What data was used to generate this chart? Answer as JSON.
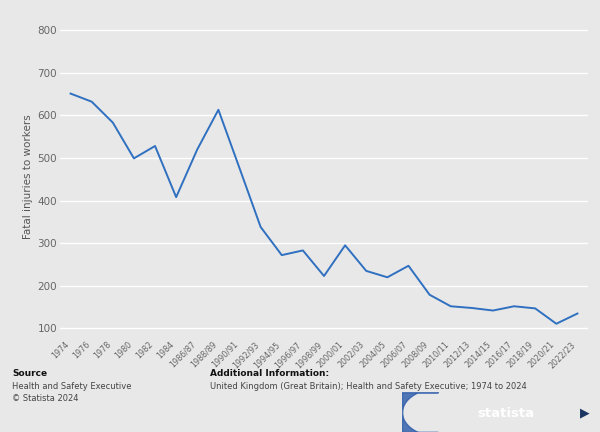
{
  "x_labels": [
    "1974",
    "1976",
    "1978",
    "1980",
    "1982",
    "1984",
    "1986/87",
    "1988/89",
    "1990/91",
    "1992/93",
    "1994/95",
    "1996/97",
    "1998/99",
    "2000/01",
    "2002/03",
    "2004/05",
    "2006/07",
    "2008/09",
    "2010/11",
    "2012/13",
    "2014/15",
    "2016/17",
    "2018/19",
    "2020/21",
    "2022/23"
  ],
  "y_values": [
    651,
    632,
    583,
    499,
    528,
    408,
    520,
    613,
    476,
    338,
    272,
    283,
    223,
    295,
    235,
    220,
    247,
    179,
    152,
    148,
    142,
    152,
    147,
    111,
    135
  ],
  "line_color": "#3070c0",
  "bg_color": "#e8e8e8",
  "plot_bg_color": "#e8e8e8",
  "grid_color": "#ffffff",
  "ylabel": "Fatal injuries to workers",
  "yticks": [
    100,
    200,
    300,
    400,
    500,
    600,
    700,
    800
  ],
  "ylim": [
    80,
    830
  ],
  "footer_bg": "#e8e8e8",
  "logo_bg": "#1a3560",
  "source_line1": "Source",
  "source_line2": "Health and Safety Executive",
  "source_line3": "© Statista 2024",
  "add_info_line1": "Additional Information:",
  "add_info_line2": "United Kingdom (Great Britain); Health and Safety Executive; 1974 to 2024"
}
